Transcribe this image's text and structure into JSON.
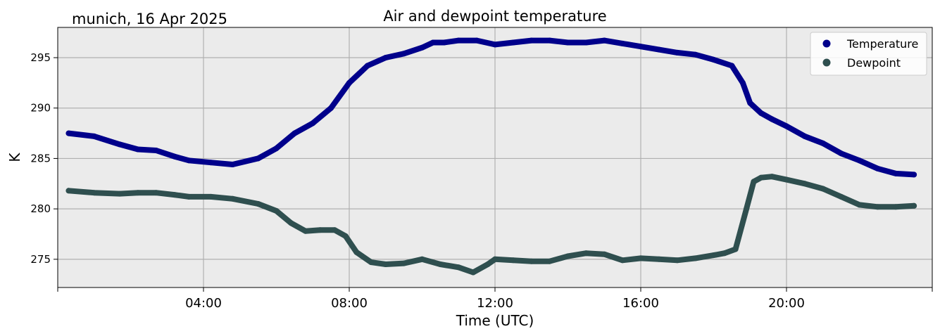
{
  "header": {
    "location_date": "munich, 16 Apr 2025"
  },
  "chart_data": {
    "type": "line",
    "title": "Air and dewpoint temperature",
    "xlabel": "Time (UTC)",
    "ylabel": "K",
    "xlim_hours": [
      0,
      24
    ],
    "ylim": [
      272.2,
      298.0
    ],
    "x_ticks": [
      {
        "hour": 4,
        "label": "04:00"
      },
      {
        "hour": 8,
        "label": "08:00"
      },
      {
        "hour": 12,
        "label": "12:00"
      },
      {
        "hour": 16,
        "label": "16:00"
      },
      {
        "hour": 20,
        "label": "20:00"
      }
    ],
    "y_ticks": [
      {
        "value": 275,
        "label": "275"
      },
      {
        "value": 280,
        "label": "280"
      },
      {
        "value": 285,
        "label": "285"
      },
      {
        "value": 290,
        "label": "290"
      },
      {
        "value": 295,
        "label": "295"
      }
    ],
    "grid": true,
    "legend_position": "top-right",
    "background_color": "#ebebeb",
    "series": [
      {
        "name": "Temperature",
        "color": "#00008b",
        "raw_color": "#4a9fb0",
        "x_hours": [
          0.3,
          1.0,
          1.7,
          2.2,
          2.7,
          3.2,
          3.6,
          4.2,
          4.8,
          5.5,
          6.0,
          6.5,
          7.0,
          7.5,
          8.0,
          8.5,
          9.0,
          9.5,
          10.0,
          10.3,
          10.6,
          11.0,
          11.5,
          12.0,
          12.5,
          13.0,
          13.5,
          14.0,
          14.5,
          15.0,
          15.5,
          16.0,
          16.5,
          17.0,
          17.5,
          18.0,
          18.5,
          18.8,
          19.0,
          19.3,
          19.6,
          20.0,
          20.5,
          21.0,
          21.5,
          22.0,
          22.5,
          23.0,
          23.5
        ],
        "values": [
          287.5,
          287.2,
          286.4,
          285.9,
          285.8,
          285.2,
          284.8,
          284.6,
          284.4,
          285.0,
          286.0,
          287.5,
          288.5,
          290.0,
          292.5,
          294.2,
          295.0,
          295.4,
          296.0,
          296.5,
          296.5,
          296.7,
          296.7,
          296.3,
          296.5,
          296.7,
          296.7,
          296.5,
          296.5,
          296.7,
          296.4,
          296.1,
          295.8,
          295.5,
          295.3,
          294.8,
          294.2,
          292.5,
          290.5,
          289.5,
          288.9,
          288.2,
          287.2,
          286.5,
          285.5,
          284.8,
          284.0,
          283.5,
          283.4
        ]
      },
      {
        "name": "Dewpoint",
        "color": "#2f4f4f",
        "raw_color": "#1e90ff",
        "x_hours": [
          0.3,
          1.0,
          1.7,
          2.2,
          2.7,
          3.2,
          3.6,
          4.2,
          4.8,
          5.5,
          6.0,
          6.4,
          6.8,
          7.2,
          7.6,
          7.9,
          8.2,
          8.6,
          9.0,
          9.5,
          10.0,
          10.5,
          11.0,
          11.4,
          11.8,
          12.0,
          12.5,
          13.0,
          13.5,
          14.0,
          14.5,
          15.0,
          15.5,
          16.0,
          16.5,
          17.0,
          17.5,
          18.0,
          18.3,
          18.6,
          18.9,
          19.1,
          19.3,
          19.6,
          20.0,
          20.5,
          21.0,
          21.5,
          22.0,
          22.5,
          23.0,
          23.5
        ],
        "values": [
          281.8,
          281.6,
          281.5,
          281.6,
          281.6,
          281.4,
          281.2,
          281.2,
          281.0,
          280.5,
          279.8,
          278.6,
          277.8,
          277.9,
          277.9,
          277.3,
          275.7,
          274.7,
          274.5,
          274.6,
          275.0,
          274.5,
          274.2,
          273.7,
          274.5,
          275.0,
          274.9,
          274.8,
          274.8,
          275.3,
          275.6,
          275.5,
          274.9,
          275.1,
          275.0,
          274.9,
          275.1,
          275.4,
          275.6,
          276.0,
          280.0,
          282.7,
          283.1,
          283.2,
          282.9,
          282.5,
          282.0,
          281.2,
          280.4,
          280.2,
          280.2,
          280.3
        ]
      }
    ]
  }
}
